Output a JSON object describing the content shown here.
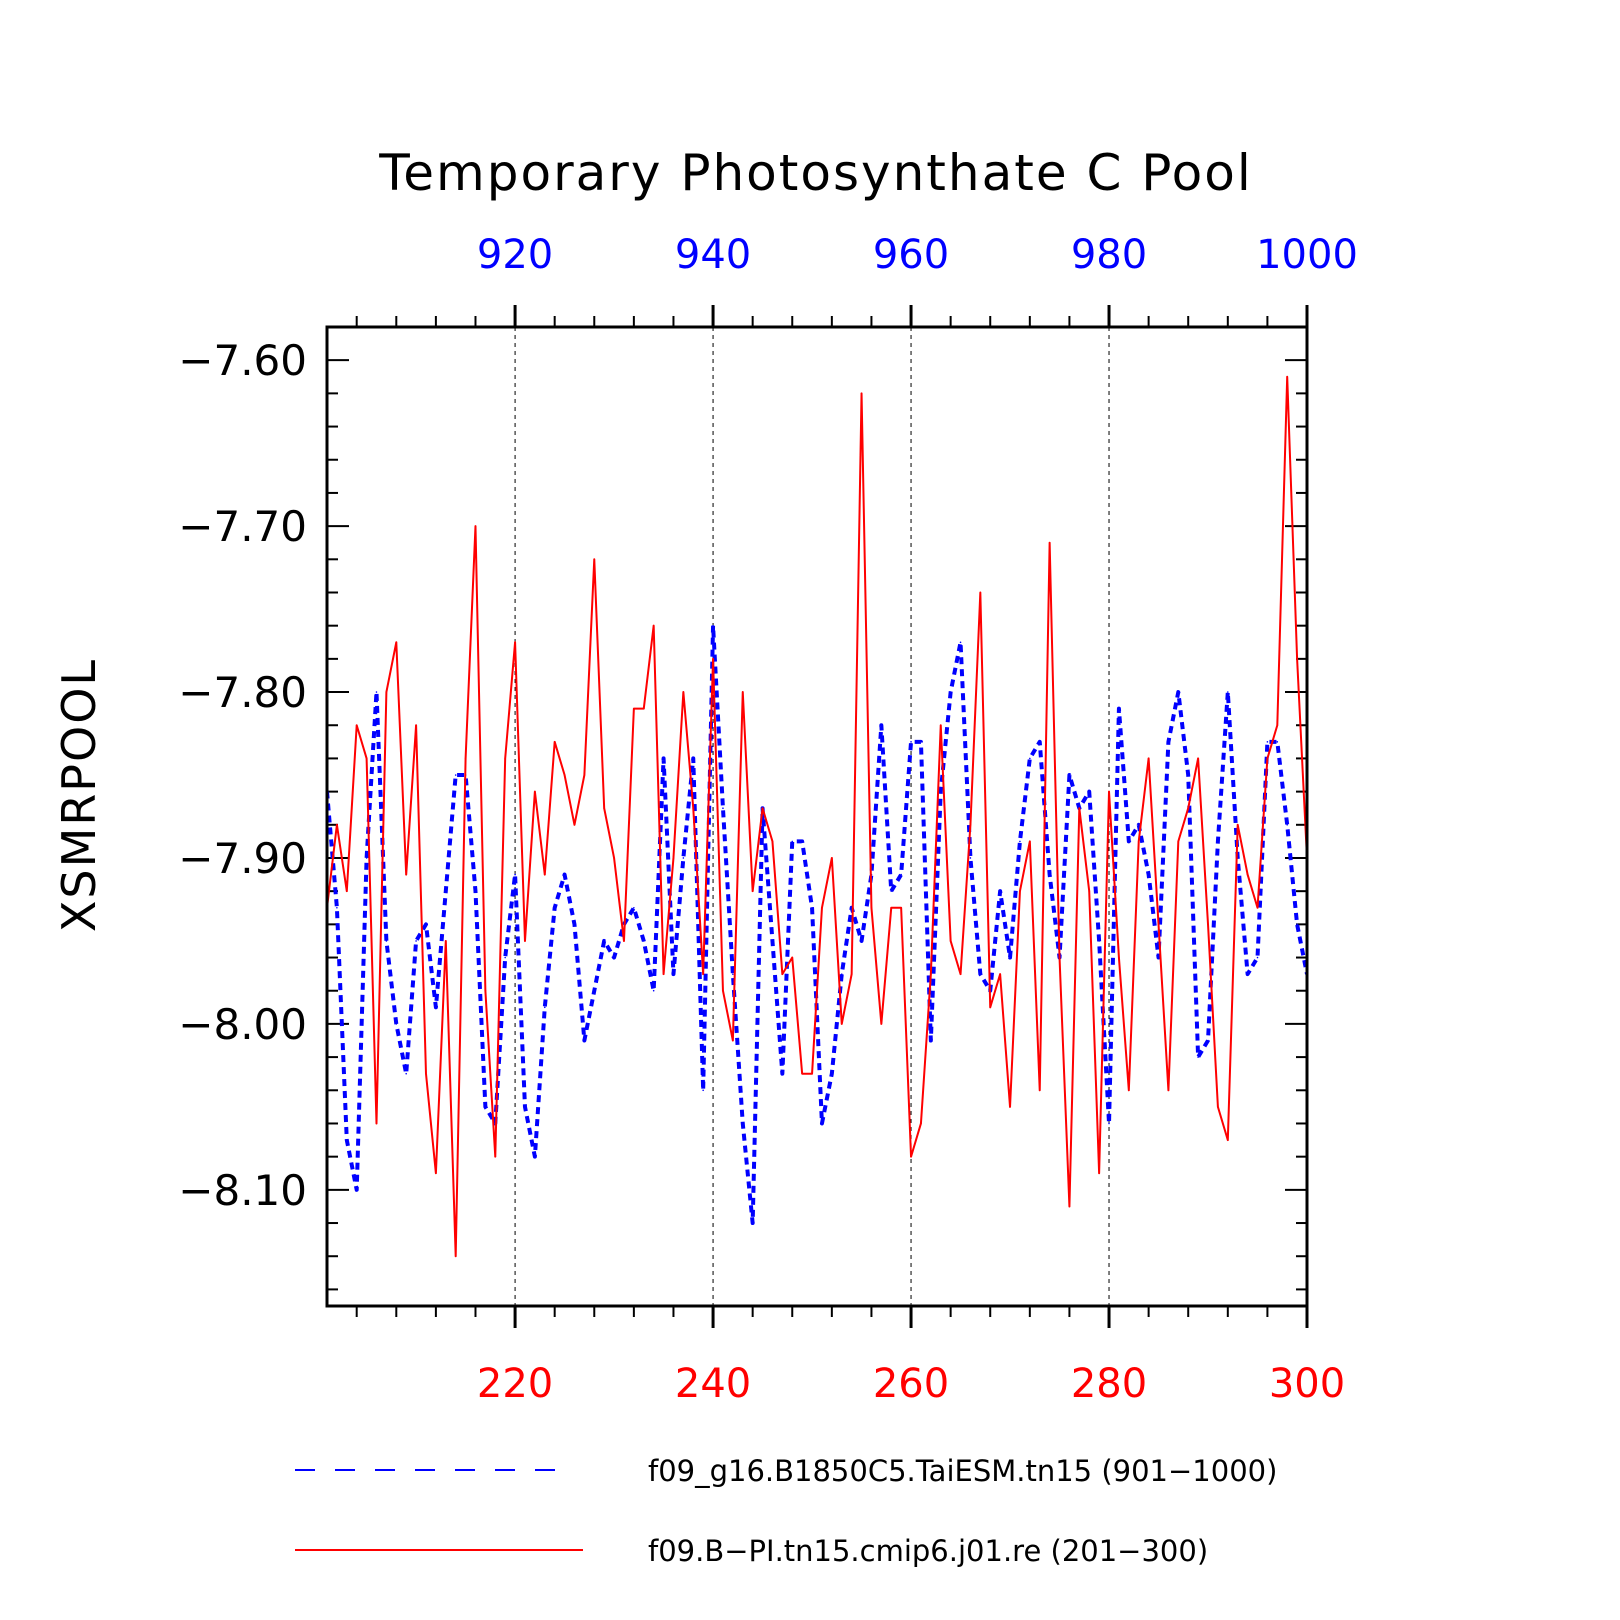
{
  "chart_data": {
    "type": "line",
    "title": "Temporary Photosynthate C Pool",
    "ylabel": "XSMRPOOL",
    "ylim": [
      -8.17,
      -7.58
    ],
    "yticks": [
      -7.6,
      -7.7,
      -7.8,
      -7.9,
      -8.0,
      -8.1
    ],
    "ytick_labels": [
      "−7.60",
      "−7.70",
      "−7.80",
      "−7.90",
      "−8.00",
      "−8.10"
    ],
    "grid_x": true,
    "legend_position": "bottom",
    "top_axis": {
      "xlim": [
        901,
        1000
      ],
      "ticks": [
        920,
        940,
        960,
        980,
        1000
      ],
      "tick_labels": [
        "920",
        "940",
        "960",
        "980",
        "1000"
      ],
      "color": "#0000ff"
    },
    "bottom_axis": {
      "xlim": [
        201,
        300
      ],
      "ticks": [
        220,
        240,
        260,
        280,
        300
      ],
      "tick_labels": [
        "220",
        "240",
        "260",
        "280",
        "300"
      ],
      "color": "#ff0000"
    },
    "series": [
      {
        "name": "f09_g16.B1850C5.TaiESM.tn15 (901−1000)",
        "color": "#0000ff",
        "style": "dashed",
        "axis": "top",
        "x_start": 901,
        "values": [
          -7.86,
          -7.93,
          -8.07,
          -8.1,
          -7.9,
          -7.8,
          -7.95,
          -8.0,
          -8.03,
          -7.95,
          -7.94,
          -7.99,
          -7.92,
          -7.85,
          -7.85,
          -7.92,
          -8.05,
          -8.06,
          -7.96,
          -7.91,
          -8.05,
          -8.08,
          -7.99,
          -7.93,
          -7.91,
          -7.94,
          -8.01,
          -7.98,
          -7.95,
          -7.96,
          -7.94,
          -7.93,
          -7.95,
          -7.98,
          -7.84,
          -7.97,
          -7.9,
          -7.84,
          -8.04,
          -7.76,
          -7.87,
          -7.97,
          -8.06,
          -8.12,
          -7.87,
          -7.95,
          -8.03,
          -7.89,
          -7.89,
          -7.93,
          -8.06,
          -8.03,
          -7.97,
          -7.93,
          -7.95,
          -7.91,
          -7.82,
          -7.92,
          -7.91,
          -7.83,
          -7.83,
          -8.01,
          -7.86,
          -7.8,
          -7.77,
          -7.9,
          -7.97,
          -7.98,
          -7.92,
          -7.96,
          -7.89,
          -7.84,
          -7.83,
          -7.91,
          -7.96,
          -7.85,
          -7.87,
          -7.86,
          -7.95,
          -8.06,
          -7.81,
          -7.89,
          -7.88,
          -7.91,
          -7.96,
          -7.83,
          -7.8,
          -7.85,
          -8.02,
          -8.01,
          -7.89,
          -7.8,
          -7.9,
          -7.97,
          -7.96,
          -7.83,
          -7.83,
          -7.88,
          -7.94,
          -7.97
        ]
      },
      {
        "name": "f09.B−PI.tn15.cmip6.j01.re (201−300)",
        "color": "#ff0000",
        "style": "solid",
        "axis": "bottom",
        "x_start": 201,
        "values": [
          -7.93,
          -7.88,
          -7.92,
          -7.82,
          -7.84,
          -8.06,
          -7.8,
          -7.77,
          -7.91,
          -7.82,
          -8.03,
          -8.09,
          -7.95,
          -8.14,
          -7.84,
          -7.7,
          -7.98,
          -8.08,
          -7.84,
          -7.77,
          -7.95,
          -7.86,
          -7.91,
          -7.83,
          -7.85,
          -7.88,
          -7.85,
          -7.72,
          -7.87,
          -7.9,
          -7.95,
          -7.81,
          -7.81,
          -7.76,
          -7.97,
          -7.9,
          -7.8,
          -7.87,
          -7.97,
          -7.78,
          -7.98,
          -8.01,
          -7.8,
          -7.92,
          -7.87,
          -7.89,
          -7.97,
          -7.96,
          -8.03,
          -8.03,
          -7.93,
          -7.9,
          -8.0,
          -7.97,
          -7.62,
          -7.93,
          -8.0,
          -7.93,
          -7.93,
          -8.08,
          -8.06,
          -7.97,
          -7.82,
          -7.95,
          -7.97,
          -7.88,
          -7.74,
          -7.99,
          -7.97,
          -8.05,
          -7.92,
          -7.89,
          -8.04,
          -7.71,
          -7.96,
          -8.11,
          -7.87,
          -7.92,
          -8.09,
          -7.86,
          -7.96,
          -8.04,
          -7.89,
          -7.84,
          -7.94,
          -8.04,
          -7.89,
          -7.87,
          -7.84,
          -7.94,
          -8.05,
          -8.07,
          -7.88,
          -7.91,
          -7.93,
          -7.84,
          -7.82,
          -7.61,
          -7.78,
          -7.9
        ]
      }
    ]
  }
}
